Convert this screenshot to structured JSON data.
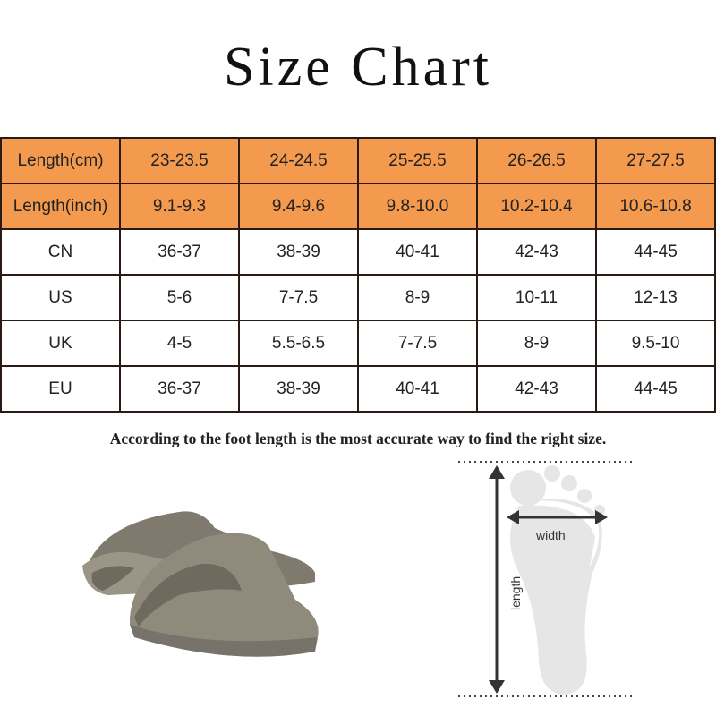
{
  "title": "Size Chart",
  "table": {
    "rows": [
      {
        "label": "Length(cm)",
        "values": [
          "23-23.5",
          "24-24.5",
          "25-25.5",
          "26-26.5",
          "27-27.5"
        ],
        "header": true
      },
      {
        "label": "Length(inch)",
        "values": [
          "9.1-9.3",
          "9.4-9.6",
          "9.8-10.0",
          "10.2-10.4",
          "10.6-10.8"
        ],
        "header": true
      },
      {
        "label": "CN",
        "values": [
          "36-37",
          "38-39",
          "40-41",
          "42-43",
          "44-45"
        ]
      },
      {
        "label": "US",
        "values": [
          "5-6",
          "7-7.5",
          "8-9",
          "10-11",
          "12-13"
        ]
      },
      {
        "label": "UK",
        "values": [
          "4-5",
          "5.5-6.5",
          "7-7.5",
          "8-9",
          "9.5-10"
        ]
      },
      {
        "label": "EU",
        "values": [
          "36-37",
          "38-39",
          "40-41",
          "42-43",
          "44-45"
        ]
      }
    ]
  },
  "note": "According to the foot length is the most accurate way to find the right size.",
  "diagram": {
    "width_label": "width",
    "length_label": "length"
  },
  "colors": {
    "header_bg": "#f39a4e",
    "border": "#2a1a14",
    "sandal": "#8f8a7c",
    "foot": "#e6e6e6"
  }
}
